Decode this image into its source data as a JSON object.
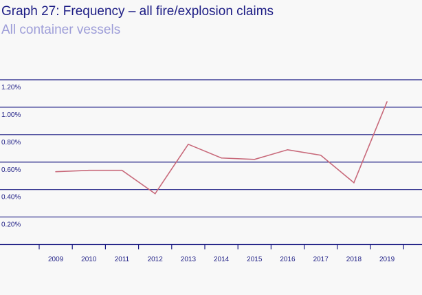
{
  "chart_data": {
    "type": "line",
    "title": "Graph 27: Frequency – all fire/explosion claims",
    "subtitle": "All container vessels",
    "xlabel": "",
    "ylabel": "",
    "categories": [
      "2009",
      "2010",
      "2011",
      "2012",
      "2013",
      "2014",
      "2015",
      "2016",
      "2017",
      "2018",
      "2019"
    ],
    "series": [
      {
        "values": [
          0.53,
          0.54,
          0.54,
          0.37,
          0.73,
          0.63,
          0.62,
          0.69,
          0.65,
          0.45,
          1.04
        ]
      }
    ],
    "ylim": [
      0,
      1.2
    ],
    "yticks": [
      1.2,
      1.0,
      0.8,
      0.6,
      0.4,
      0.2
    ],
    "ytick_labels": [
      "1.20%",
      "1.00%",
      "0.80%",
      "0.60%",
      "0.40%",
      "0.20%"
    ],
    "grid": true,
    "legend": "none",
    "colors": {
      "line": "#c8697a",
      "grid": "#1c1c84",
      "title": "#1c1c84",
      "subtitle": "#9d9dd8",
      "background": "#f8f8f8"
    }
  }
}
